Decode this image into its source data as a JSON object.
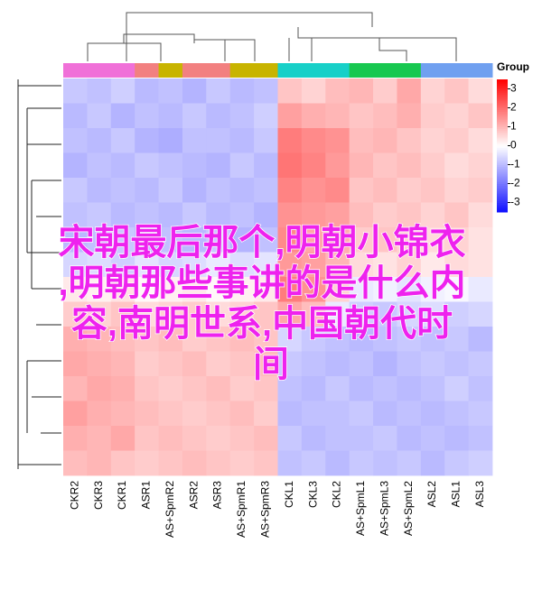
{
  "chart_data": {
    "type": "heatmap",
    "overlay_lines": [
      "宋朝最后那个,明朝小锦衣",
      ",明朝那些事讲的是什么内",
      "容,南明世系,中国朝代时",
      "间"
    ],
    "overlay_color": "#ee22ee",
    "legend_title": "Group",
    "columns": [
      "CKR2",
      "CKR3",
      "CKR1",
      "ASR1",
      "AS+SpmR2",
      "ASR2",
      "ASR3",
      "AS+SpmR1",
      "AS+SpmR3",
      "CKL1",
      "CKL3",
      "CKL2",
      "AS+SpmL1",
      "AS+SpmL3",
      "AS+SpmL2",
      "ASL2",
      "ASL1",
      "ASL3"
    ],
    "group_colors": [
      "#f070d8",
      "#f070d8",
      "#f070d8",
      "#f28080",
      "#c8b400",
      "#f28080",
      "#f28080",
      "#c8b400",
      "#c8b400",
      "#18d0c8",
      "#18d0c8",
      "#18d0c8",
      "#18c850",
      "#18c850",
      "#18c850",
      "#70a0f0",
      "#70a0f0",
      "#70a0f0"
    ],
    "values": [
      [
        -0.8,
        -0.9,
        -0.7,
        -1.0,
        -0.9,
        -1.1,
        -0.8,
        -1.0,
        -0.9,
        0.8,
        0.6,
        0.9,
        1.0,
        0.7,
        1.2,
        0.6,
        0.8,
        0.5
      ],
      [
        -1.0,
        -0.8,
        -1.1,
        -0.9,
        -1.0,
        -0.8,
        -1.0,
        -0.9,
        -0.7,
        1.3,
        1.1,
        1.0,
        0.8,
        0.9,
        1.1,
        0.7,
        0.6,
        0.8
      ],
      [
        -0.9,
        -1.0,
        -0.8,
        -1.1,
        -1.2,
        -0.9,
        -0.9,
        -1.0,
        -0.8,
        1.8,
        1.6,
        1.5,
        0.9,
        1.0,
        0.8,
        0.6,
        0.7,
        0.5
      ],
      [
        -1.1,
        -0.9,
        -1.0,
        -0.8,
        -0.9,
        -1.0,
        -1.1,
        -0.8,
        -1.0,
        1.9,
        1.7,
        1.4,
        1.0,
        0.8,
        0.9,
        0.7,
        0.5,
        0.6
      ],
      [
        -0.8,
        -1.0,
        -0.9,
        -1.0,
        -0.8,
        -1.1,
        -0.9,
        -1.0,
        -0.9,
        1.7,
        1.5,
        1.6,
        0.8,
        0.9,
        0.7,
        0.8,
        0.6,
        0.7
      ],
      [
        -0.9,
        -0.8,
        -1.0,
        -0.9,
        -1.0,
        -0.8,
        -1.0,
        -0.9,
        -1.1,
        1.5,
        1.4,
        1.3,
        0.9,
        0.7,
        0.8,
        0.6,
        0.8,
        0.5
      ],
      [
        -1.0,
        -0.9,
        -0.8,
        -1.0,
        -0.9,
        -1.0,
        -0.8,
        -1.1,
        -0.9,
        1.6,
        1.2,
        1.1,
        0.7,
        0.8,
        0.6,
        0.5,
        0.6,
        0.4
      ],
      [
        -0.6,
        -0.5,
        -0.7,
        -0.4,
        -0.6,
        -0.5,
        -0.3,
        -0.5,
        -0.4,
        1.4,
        1.3,
        1.0,
        0.5,
        0.4,
        0.6,
        0.3,
        0.5,
        0.4
      ],
      [
        0.3,
        0.2,
        0.4,
        0.1,
        0.2,
        0.3,
        0.1,
        0.2,
        0.3,
        1.8,
        1.5,
        0.6,
        -0.3,
        -0.2,
        -0.4,
        -0.2,
        -0.1,
        -0.3
      ],
      [
        0.7,
        0.6,
        0.8,
        0.5,
        0.6,
        0.7,
        0.5,
        0.6,
        0.8,
        1.2,
        0.9,
        -0.3,
        -0.7,
        -0.8,
        -0.6,
        -0.5,
        -0.7,
        -0.6
      ],
      [
        1.1,
        1.0,
        0.9,
        0.8,
        0.9,
        0.7,
        0.8,
        0.9,
        0.8,
        -0.6,
        -0.8,
        -0.9,
        -1.0,
        -0.9,
        -0.8,
        -0.9,
        -0.8,
        -1.0
      ],
      [
        1.2,
        1.1,
        1.0,
        0.7,
        0.8,
        0.9,
        0.7,
        0.8,
        0.9,
        -0.8,
        -0.9,
        -1.0,
        -0.9,
        -1.1,
        -0.9,
        -0.8,
        -0.9,
        -0.8
      ],
      [
        1.0,
        1.2,
        1.1,
        0.8,
        0.7,
        0.8,
        0.9,
        0.7,
        0.8,
        -0.9,
        -1.0,
        -0.8,
        -1.0,
        -0.9,
        -1.0,
        -0.9,
        -0.7,
        -0.9
      ],
      [
        1.3,
        1.1,
        1.0,
        0.9,
        0.8,
        0.7,
        0.8,
        0.9,
        0.7,
        -1.0,
        -0.9,
        -0.9,
        -0.8,
        -1.0,
        -0.9,
        -1.0,
        -0.9,
        -0.8
      ],
      [
        1.1,
        1.0,
        1.2,
        0.8,
        0.9,
        0.8,
        0.7,
        0.8,
        0.9,
        -0.8,
        -1.0,
        -0.9,
        -0.9,
        -0.8,
        -1.0,
        -0.9,
        -1.0,
        -0.9
      ],
      [
        0.9,
        1.0,
        0.8,
        0.7,
        0.8,
        0.9,
        0.8,
        0.7,
        0.8,
        -0.9,
        -0.8,
        -1.0,
        -0.8,
        -0.9,
        -0.8,
        -1.0,
        -0.8,
        -0.7
      ]
    ],
    "clim": [
      -3.5,
      3.5
    ],
    "cticks": [
      3,
      2,
      1,
      0,
      -1,
      -2,
      -3
    ]
  }
}
